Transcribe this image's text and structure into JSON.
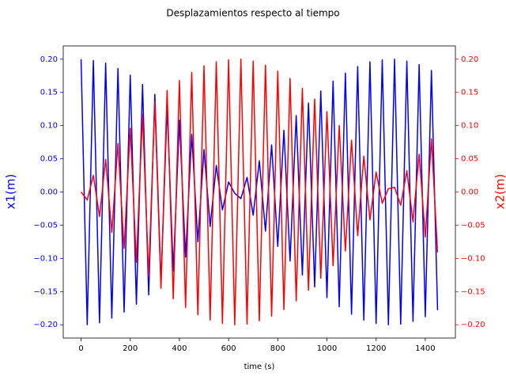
{
  "chart_data": {
    "type": "line",
    "title": "Desplazamientos respecto al tiempo",
    "xlabel": "time (s)",
    "ylabel": "x1(m)",
    "y2label": "x2(m)",
    "x": [
      0,
      25,
      50,
      75,
      100,
      125,
      150,
      175,
      200,
      225,
      250,
      275,
      300,
      325,
      350,
      375,
      400,
      425,
      450,
      475,
      500,
      525,
      550,
      575,
      600,
      625,
      650,
      675,
      700,
      725,
      750,
      775,
      800,
      825,
      850,
      875,
      900,
      925,
      950,
      975,
      1000,
      1025,
      1050,
      1075,
      1100,
      1125,
      1150,
      1175,
      1200,
      1225,
      1250,
      1275,
      1300,
      1325,
      1350,
      1375,
      1400,
      1425,
      1450
    ],
    "series": [
      {
        "color": "#0000ff",
        "axis": "y",
        "values": [
          0.2,
          -0.2,
          0.198,
          -0.197,
          0.194,
          -0.19,
          0.186,
          -0.181,
          0.176,
          -0.169,
          0.162,
          -0.155,
          0.147,
          -0.138,
          0.129,
          -0.119,
          0.108,
          -0.098,
          0.087,
          -0.075,
          0.064,
          -0.052,
          0.04,
          -0.027,
          0.015,
          -0.002,
          -0.01,
          0.022,
          -0.035,
          0.047,
          -0.059,
          0.071,
          -0.082,
          0.093,
          -0.104,
          0.115,
          -0.125,
          0.134,
          -0.143,
          0.152,
          -0.159,
          0.167,
          -0.173,
          0.179,
          -0.184,
          0.189,
          -0.193,
          0.196,
          -0.198,
          0.199,
          -0.2,
          0.2,
          -0.199,
          0.197,
          -0.195,
          0.192,
          -0.188,
          0.183,
          -0.178
        ]
      },
      {
        "color": "#ff0000",
        "axis": "y2",
        "values": [
          0,
          -0.012,
          0.025,
          -0.037,
          0.049,
          -0.061,
          0.073,
          -0.085,
          0.096,
          -0.106,
          0.117,
          -0.127,
          0.136,
          -0.145,
          0.153,
          -0.161,
          0.168,
          -0.174,
          0.18,
          -0.185,
          0.19,
          -0.193,
          0.196,
          -0.198,
          0.199,
          -0.2,
          0.2,
          -0.199,
          0.197,
          -0.194,
          0.191,
          -0.187,
          0.182,
          -0.177,
          0.171,
          -0.164,
          0.156,
          -0.148,
          0.14,
          -0.13,
          0.121,
          -0.111,
          0.1,
          -0.089,
          0.078,
          -0.066,
          0.054,
          -0.042,
          0.03,
          -0.017,
          0.005,
          0.007,
          -0.02,
          0.032,
          -0.045,
          0.057,
          -0.068,
          0.08,
          -0.091
        ]
      }
    ],
    "xlim": [
      -72.5,
      1522.5
    ],
    "xticks": [
      0,
      200,
      400,
      600,
      800,
      1000,
      1200,
      1400
    ],
    "ylim": [
      -0.22,
      0.22
    ],
    "yticks": [
      {
        "value": -0.2,
        "label": "−0.20"
      },
      {
        "value": -0.15,
        "label": "−0.15"
      },
      {
        "value": -0.1,
        "label": "−0.10"
      },
      {
        "value": -0.05,
        "label": "−0.05"
      },
      {
        "value": 0,
        "label": "0.00"
      },
      {
        "value": 0.05,
        "label": "0.05"
      },
      {
        "value": 0.1,
        "label": "0.10"
      },
      {
        "value": 0.15,
        "label": "0.15"
      },
      {
        "value": 0.2,
        "label": "0.20"
      }
    ],
    "y2lim": [
      -0.22,
      0.22
    ],
    "y2ticks": [
      {
        "value": -0.2,
        "label": "−0.20"
      },
      {
        "value": -0.15,
        "label": "−0.15"
      },
      {
        "value": -0.1,
        "label": "−0.10"
      },
      {
        "value": -0.05,
        "label": "−0.05"
      },
      {
        "value": 0,
        "label": "0.00"
      },
      {
        "value": 0.05,
        "label": "0.05"
      },
      {
        "value": 0.1,
        "label": "0.10"
      },
      {
        "value": 0.15,
        "label": "0.15"
      },
      {
        "value": 0.2,
        "label": "0.20"
      }
    ],
    "grid": false
  }
}
